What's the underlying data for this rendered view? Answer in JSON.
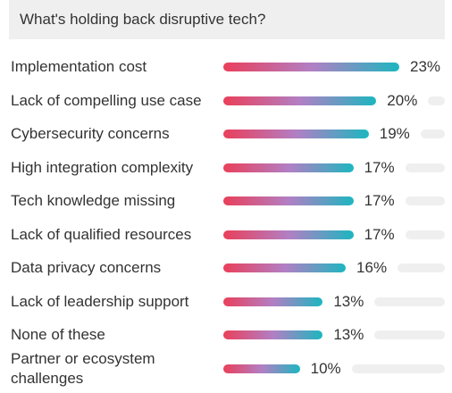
{
  "chart_data": {
    "type": "bar",
    "orientation": "horizontal",
    "title": "What's holding back disruptive tech?",
    "categories": [
      "Implementation cost",
      "Lack of compelling use case",
      "Cybersecurity concerns",
      "High integration complexity",
      "Tech knowledge missing",
      "Lack of qualified resources",
      "Data privacy concerns",
      "Lack of leadership support",
      "None of these",
      "Partner or ecosystem challenges"
    ],
    "values": [
      23,
      20,
      19,
      17,
      17,
      17,
      16,
      13,
      13,
      10
    ],
    "value_labels": [
      "23%",
      "20%",
      "19%",
      "17%",
      "17%",
      "17%",
      "16%",
      "13%",
      "13%",
      "10%"
    ],
    "colors": [
      "#ea3f5a",
      "#b27fc4",
      "#1db6c0"
    ]
  }
}
